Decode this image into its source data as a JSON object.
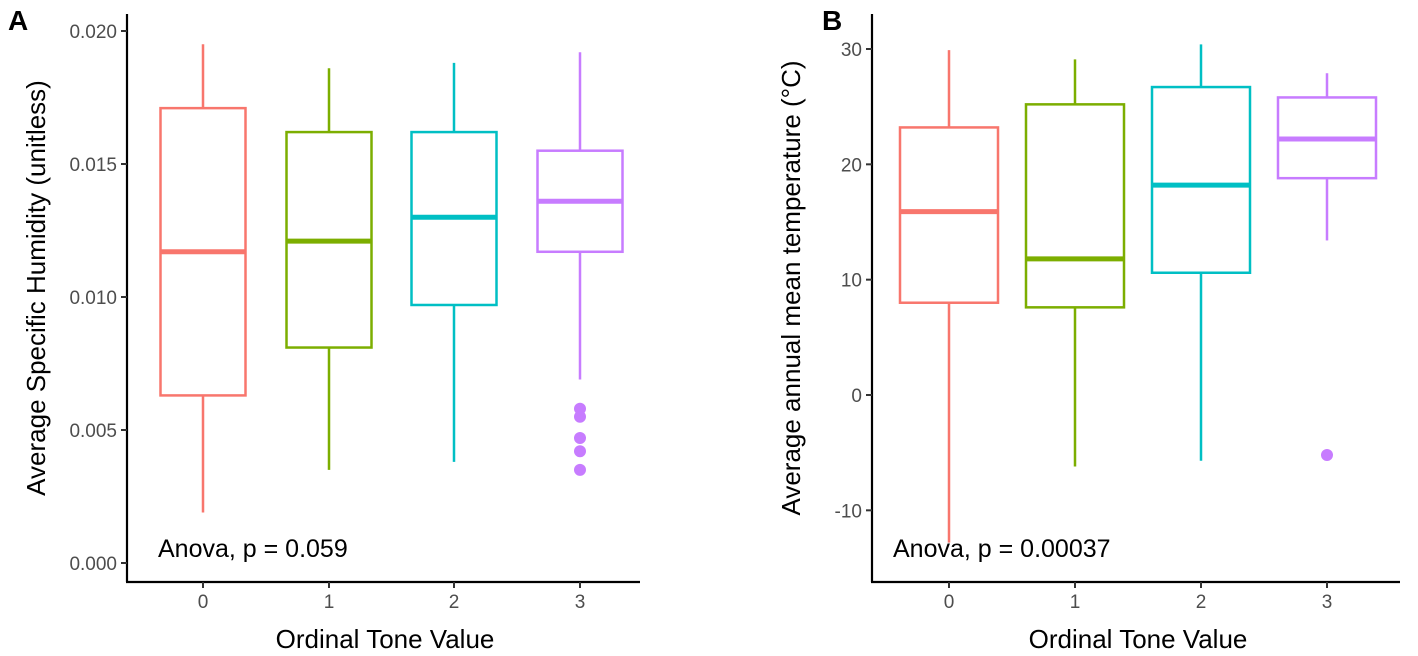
{
  "colors": [
    "#F8766D",
    "#7CAE00",
    "#00BFC4",
    "#C77CFF"
  ],
  "chart_data": [
    {
      "type": "box",
      "panel_label": "A",
      "xlabel": "Ordinal Tone Value",
      "ylabel": "Average Specific Humidity (unitless)",
      "categories": [
        "0",
        "1",
        "2",
        "3"
      ],
      "yticks": [
        "0.000",
        "0.005",
        "0.010",
        "0.015",
        "0.020"
      ],
      "ytick_values": [
        0,
        0.005,
        0.01,
        0.015,
        0.02
      ],
      "ylim": [
        -0.0005,
        0.021
      ],
      "annotation": "Anova, p = 0.059",
      "boxes": [
        {
          "min": 0.0019,
          "q1": 0.0063,
          "median": 0.0117,
          "q3": 0.0171,
          "max": 0.0195,
          "outliers": []
        },
        {
          "min": 0.0035,
          "q1": 0.0081,
          "median": 0.0121,
          "q3": 0.0162,
          "max": 0.0186,
          "outliers": []
        },
        {
          "min": 0.0038,
          "q1": 0.0097,
          "median": 0.013,
          "q3": 0.0162,
          "max": 0.0188,
          "outliers": []
        },
        {
          "min": 0.0069,
          "q1": 0.0117,
          "median": 0.0136,
          "q3": 0.0155,
          "max": 0.0192,
          "outliers": [
            0.0058,
            0.0055,
            0.0047,
            0.0042,
            0.0035
          ]
        }
      ]
    },
    {
      "type": "box",
      "panel_label": "B",
      "xlabel": "Ordinal Tone Value",
      "ylabel": "Average annual mean temperature (°C)",
      "categories": [
        "0",
        "1",
        "2",
        "3"
      ],
      "yticks": [
        "-10",
        "0",
        "10",
        "20",
        "30"
      ],
      "ytick_values": [
        -10,
        0,
        10,
        20,
        30
      ],
      "ylim": [
        -16,
        33
      ],
      "annotation": "Anova, p = 0.00037",
      "boxes": [
        {
          "min": -12.8,
          "q1": 8.0,
          "median": 15.9,
          "q3": 23.2,
          "max": 29.9,
          "outliers": []
        },
        {
          "min": -6.2,
          "q1": 7.6,
          "median": 11.8,
          "q3": 25.2,
          "max": 29.1,
          "outliers": []
        },
        {
          "min": -5.7,
          "q1": 10.6,
          "median": 18.2,
          "q3": 26.7,
          "max": 30.4,
          "outliers": []
        },
        {
          "min": 13.4,
          "q1": 18.8,
          "median": 22.2,
          "q3": 25.8,
          "max": 27.9,
          "outliers": [
            -5.2
          ]
        }
      ]
    }
  ]
}
